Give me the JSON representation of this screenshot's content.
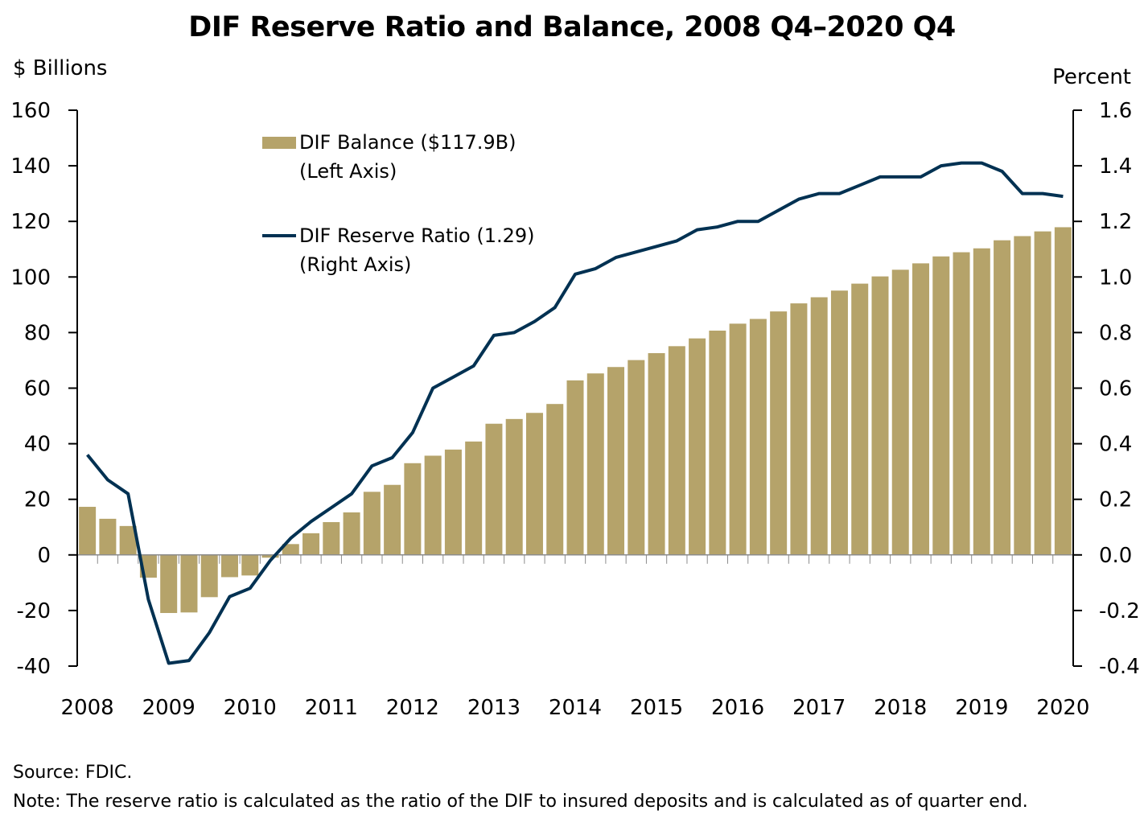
{
  "chart_data": {
    "type": "bar+line",
    "title": "DIF Reserve Ratio and Balance, 2008 Q4–2020 Q4",
    "ylabel_left": "$ Billions",
    "ylabel_right": "Percent",
    "ylim_left": [
      -40,
      160
    ],
    "ylim_right": [
      -0.4,
      1.6
    ],
    "yticks_left": [
      "160",
      "140",
      "120",
      "100",
      "80",
      "60",
      "40",
      "20",
      "0",
      "-20",
      "-40"
    ],
    "yticks_right": [
      "1.6",
      "1.4",
      "1.2",
      "1.0",
      "0.8",
      "0.6",
      "0.4",
      "0.2",
      "0.0",
      "-0.2",
      "-0.4"
    ],
    "xtick_labels": [
      "2008",
      "2009",
      "2010",
      "2011",
      "2012",
      "2013",
      "2014",
      "2015",
      "2016",
      "2017",
      "2018",
      "2019",
      "2020"
    ],
    "quarters": [
      "2008 Q4",
      "2009 Q1",
      "2009 Q2",
      "2009 Q3",
      "2009 Q4",
      "2010 Q1",
      "2010 Q2",
      "2010 Q3",
      "2010 Q4",
      "2011 Q1",
      "2011 Q2",
      "2011 Q3",
      "2011 Q4",
      "2012 Q1",
      "2012 Q2",
      "2012 Q3",
      "2012 Q4",
      "2013 Q1",
      "2013 Q2",
      "2013 Q3",
      "2013 Q4",
      "2014 Q1",
      "2014 Q2",
      "2014 Q3",
      "2014 Q4",
      "2015 Q1",
      "2015 Q2",
      "2015 Q3",
      "2015 Q4",
      "2016 Q1",
      "2016 Q2",
      "2016 Q3",
      "2016 Q4",
      "2017 Q1",
      "2017 Q2",
      "2017 Q3",
      "2017 Q4",
      "2018 Q1",
      "2018 Q2",
      "2018 Q3",
      "2018 Q4",
      "2019 Q1",
      "2019 Q2",
      "2019 Q3",
      "2019 Q4",
      "2020 Q1",
      "2020 Q2",
      "2020 Q3",
      "2020 Q4"
    ],
    "grid": false,
    "legend_position": "top-left",
    "series": [
      {
        "name": "DIF Balance ($117.9B)",
        "name_line2": "(Left Axis)",
        "type": "bar",
        "axis": "left",
        "color": "#b5a36a",
        "values": [
          17.3,
          13.0,
          10.4,
          -8.2,
          -20.9,
          -20.7,
          -15.2,
          -8.0,
          -7.4,
          -1.0,
          3.9,
          7.8,
          11.8,
          15.3,
          22.7,
          25.2,
          33.0,
          35.7,
          37.9,
          40.8,
          47.2,
          48.9,
          51.1,
          54.3,
          62.8,
          65.3,
          67.6,
          70.1,
          72.6,
          75.1,
          77.9,
          80.7,
          83.2,
          84.9,
          87.6,
          90.5,
          92.7,
          95.1,
          97.6,
          100.2,
          102.6,
          104.9,
          107.4,
          108.9,
          110.3,
          113.2,
          114.7,
          116.4,
          117.9
        ]
      },
      {
        "name": "DIF Reserve Ratio (1.29)",
        "name_line2": "(Right Axis)",
        "type": "line",
        "axis": "right",
        "color": "#003152",
        "values": [
          0.36,
          0.27,
          0.22,
          -0.16,
          -0.39,
          -0.38,
          -0.28,
          -0.15,
          -0.12,
          -0.02,
          0.06,
          0.12,
          0.17,
          0.22,
          0.32,
          0.35,
          0.44,
          0.6,
          0.64,
          0.68,
          0.79,
          0.8,
          0.84,
          0.89,
          1.01,
          1.03,
          1.07,
          1.09,
          1.11,
          1.13,
          1.17,
          1.18,
          1.2,
          1.2,
          1.24,
          1.28,
          1.3,
          1.3,
          1.33,
          1.36,
          1.36,
          1.36,
          1.4,
          1.41,
          1.41,
          1.38,
          1.3,
          1.3,
          1.29
        ]
      }
    ]
  },
  "footer": {
    "source": "Source: FDIC.",
    "note": "Note: The reserve ratio is calculated as the ratio of the DIF to insured deposits and is calculated as of quarter end."
  }
}
